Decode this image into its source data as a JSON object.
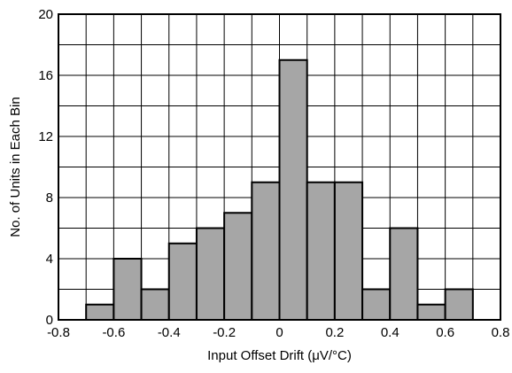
{
  "chart_data": {
    "type": "bar",
    "xlabel": "Input Offset Drift (μV/°C)",
    "ylabel": "No. of Units in Each Bin",
    "xlim": [
      -0.8,
      0.8
    ],
    "ylim": [
      0,
      20
    ],
    "x_ticks": [
      "-0.8",
      "-0.6",
      "-0.4",
      "-0.2",
      "0",
      "0.2",
      "0.4",
      "0.6",
      "0.8"
    ],
    "y_ticks": [
      "0",
      "4",
      "8",
      "12",
      "16",
      "20"
    ],
    "bin_width": 0.1,
    "bins": [
      {
        "x0": -0.7,
        "x1": -0.6,
        "value": 1
      },
      {
        "x0": -0.6,
        "x1": -0.5,
        "value": 4
      },
      {
        "x0": -0.5,
        "x1": -0.4,
        "value": 2
      },
      {
        "x0": -0.4,
        "x1": -0.3,
        "value": 5
      },
      {
        "x0": -0.3,
        "x1": -0.2,
        "value": 6
      },
      {
        "x0": -0.2,
        "x1": -0.1,
        "value": 7
      },
      {
        "x0": -0.1,
        "x1": 0.0,
        "value": 9
      },
      {
        "x0": 0.0,
        "x1": 0.1,
        "value": 17
      },
      {
        "x0": 0.1,
        "x1": 0.2,
        "value": 9
      },
      {
        "x0": 0.2,
        "x1": 0.3,
        "value": 9
      },
      {
        "x0": 0.3,
        "x1": 0.4,
        "value": 2
      },
      {
        "x0": 0.4,
        "x1": 0.5,
        "value": 6
      },
      {
        "x0": 0.5,
        "x1": 0.6,
        "value": 1
      },
      {
        "x0": 0.6,
        "x1": 0.7,
        "value": 2
      }
    ],
    "grid": true,
    "bar_color": "#a6a6a6",
    "bar_edge_color": "#000000",
    "grid_color": "#000000"
  }
}
